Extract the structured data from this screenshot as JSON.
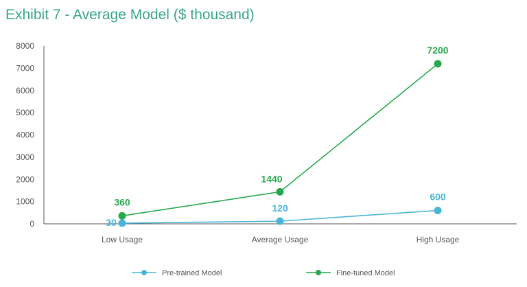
{
  "colors": {
    "title": "#3aa58a",
    "pretrained": "#4ab5d6",
    "finetuned": "#27a84f",
    "axis": "#555555"
  },
  "chart_data": {
    "type": "line",
    "title": "Exhibit 7 - Average Model ($ thousand)",
    "categories": [
      "Low Usage",
      "Average Usage",
      "High Usage"
    ],
    "ylim": [
      0,
      8000
    ],
    "yticks": [
      "0",
      "1000",
      "2000",
      "3000",
      "4000",
      "5000",
      "6000",
      "7000",
      "8000"
    ],
    "grid": false,
    "legend_position": "bottom",
    "series": [
      {
        "name": "Pre-trained Model",
        "values": [
          30,
          120,
          600
        ],
        "labels": [
          "30",
          "120",
          "600"
        ],
        "color_key": "pretrained"
      },
      {
        "name": "Fine-tuned Model",
        "values": [
          360,
          1440,
          7200
        ],
        "labels": [
          "360",
          "1440",
          "7200"
        ],
        "color_key": "finetuned"
      }
    ]
  }
}
